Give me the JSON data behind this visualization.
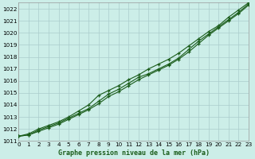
{
  "title": "Graphe pression niveau de la mer (hPa)",
  "bg_color": "#cceee8",
  "grid_color": "#aacccc",
  "line_color": "#1a5c1a",
  "xlim": [
    0,
    23
  ],
  "ylim": [
    1011,
    1022.5
  ],
  "xticks": [
    0,
    1,
    2,
    3,
    4,
    5,
    6,
    7,
    8,
    9,
    10,
    11,
    12,
    13,
    14,
    15,
    16,
    17,
    18,
    19,
    20,
    21,
    22,
    23
  ],
  "yticks": [
    1011,
    1012,
    1013,
    1014,
    1015,
    1016,
    1017,
    1018,
    1019,
    1020,
    1021,
    1022
  ],
  "series1_x": [
    0,
    1,
    2,
    3,
    4,
    5,
    6,
    7,
    8,
    9,
    10,
    11,
    12,
    13,
    14,
    15,
    16,
    17,
    18,
    19,
    20,
    21,
    22,
    23
  ],
  "series1_y": [
    1011.4,
    1011.6,
    1012.0,
    1012.3,
    1012.6,
    1013.0,
    1013.5,
    1014.0,
    1014.8,
    1015.2,
    1015.6,
    1016.1,
    1016.5,
    1017.0,
    1017.4,
    1017.8,
    1018.3,
    1018.9,
    1019.5,
    1020.1,
    1020.6,
    1021.3,
    1021.9,
    1022.5
  ],
  "series2_x": [
    0,
    1,
    2,
    3,
    4,
    5,
    6,
    7,
    8,
    9,
    10,
    11,
    12,
    13,
    14,
    15,
    16,
    17,
    18,
    19,
    20,
    21,
    22,
    23
  ],
  "series2_y": [
    1011.4,
    1011.5,
    1011.9,
    1012.2,
    1012.5,
    1012.9,
    1013.3,
    1013.7,
    1014.3,
    1014.9,
    1015.3,
    1015.8,
    1016.3,
    1016.6,
    1017.0,
    1017.4,
    1017.9,
    1018.6,
    1019.3,
    1019.9,
    1020.5,
    1021.1,
    1021.7,
    1022.4
  ],
  "series3_x": [
    0,
    1,
    2,
    3,
    4,
    5,
    6,
    7,
    8,
    9,
    10,
    11,
    12,
    13,
    14,
    15,
    16,
    17,
    18,
    19,
    20,
    21,
    22,
    23
  ],
  "series3_y": [
    1011.4,
    1011.5,
    1011.8,
    1012.1,
    1012.4,
    1012.8,
    1013.2,
    1013.6,
    1014.1,
    1014.7,
    1015.1,
    1015.6,
    1016.1,
    1016.5,
    1016.9,
    1017.3,
    1017.8,
    1018.4,
    1019.1,
    1019.8,
    1020.4,
    1021.0,
    1021.6,
    1022.3
  ]
}
